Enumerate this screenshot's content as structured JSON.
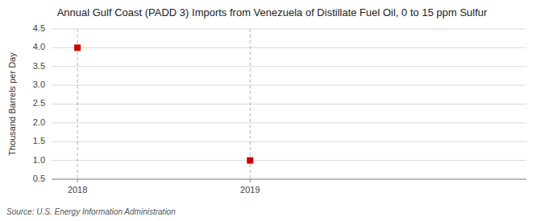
{
  "chart_data": {
    "type": "scatter",
    "title": "Annual Gulf Coast (PADD 3) Imports from Venezuela of Distillate Fuel Oil, 0 to 15 ppm Sulfur",
    "y_label": "Thousand Barrels per Day",
    "source": "Source: U.S. Energy Information Administration",
    "x": [
      2018,
      2019
    ],
    "values": [
      4.0,
      1.0
    ],
    "color": "#cc0000",
    "marker": "square",
    "xlim": [
      2017.85,
      2020.6
    ],
    "xticks": [
      2018,
      2019
    ],
    "ylim": [
      0.5,
      4.5
    ],
    "yticks": [
      0.5,
      {
        "value": 1.0,
        "label": "1.0"
      },
      1.5,
      {
        "value": 2.0,
        "label": "2.0"
      },
      2.5,
      {
        "value": 3.0,
        "label": "3.0"
      },
      3.5,
      {
        "value": 4.0,
        "label": "4.0"
      },
      4.5
    ],
    "grid": true
  }
}
